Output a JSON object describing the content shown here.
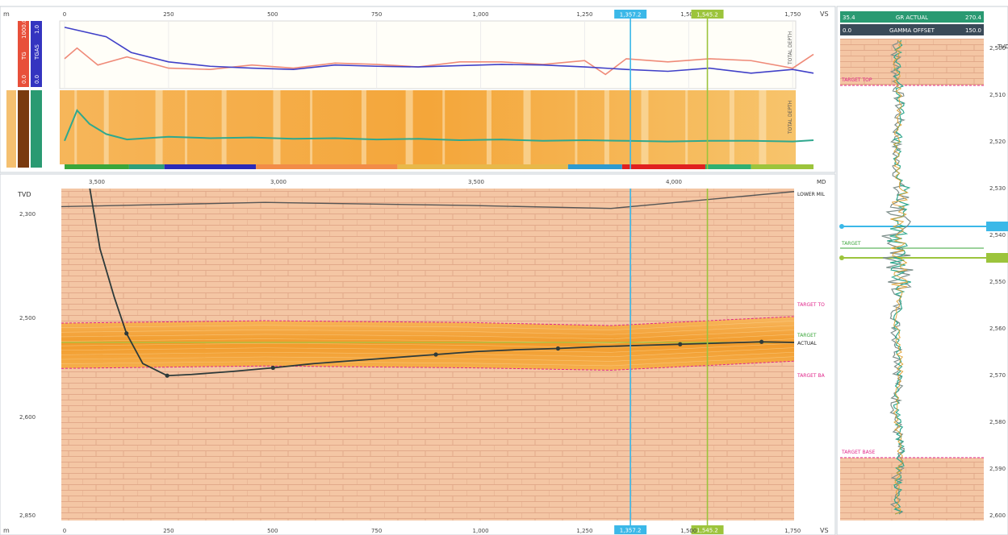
{
  "chart_data": [
    {
      "type": "line",
      "panel": "top-logs",
      "x_axis": {
        "range": [
          0,
          1800
        ],
        "ticks": [
          "0",
          "250",
          "500",
          "750",
          "1,000",
          "1,250",
          "1,500",
          "1,750"
        ],
        "end_label": "VS",
        "unit_label": "m"
      },
      "tracks": [
        {
          "id": "track-1",
          "header_labels": [
            "0.0",
            "TG",
            "1000.0"
          ],
          "side_label": "TOTAL DEPTH"
        },
        {
          "id": "track-2",
          "header_labels": [
            "0.0",
            "TGAS",
            "1.0"
          ],
          "side_label": "TOTAL DEPTH"
        }
      ],
      "series": [
        {
          "color": "#ef8a78",
          "x": [
            0,
            30,
            80,
            150,
            250,
            350,
            450,
            550,
            650,
            750,
            850,
            950,
            1050,
            1150,
            1250,
            1300,
            1350,
            1450,
            1550,
            1650,
            1750,
            1800
          ],
          "y": [
            0.45,
            0.62,
            0.35,
            0.48,
            0.3,
            0.28,
            0.35,
            0.3,
            0.38,
            0.36,
            0.32,
            0.4,
            0.4,
            0.36,
            0.42,
            0.2,
            0.45,
            0.4,
            0.45,
            0.42,
            0.3,
            0.52
          ]
        },
        {
          "color": "#4040c8",
          "x": [
            0,
            100,
            160,
            250,
            350,
            450,
            550,
            650,
            750,
            850,
            950,
            1050,
            1150,
            1250,
            1350,
            1450,
            1550,
            1650,
            1750,
            1800
          ],
          "y": [
            0.95,
            0.8,
            0.55,
            0.4,
            0.33,
            0.3,
            0.28,
            0.35,
            0.33,
            0.32,
            0.34,
            0.36,
            0.35,
            0.32,
            0.28,
            0.25,
            0.3,
            0.22,
            0.28,
            0.22
          ]
        },
        {
          "color": "#2fa88e",
          "x": [
            0,
            30,
            60,
            100,
            150,
            250,
            350,
            450,
            550,
            650,
            750,
            850,
            950,
            1050,
            1150,
            1250,
            1350,
            1450,
            1550,
            1650,
            1750,
            1800
          ],
          "y": [
            0.3,
            0.75,
            0.55,
            0.4,
            0.32,
            0.36,
            0.34,
            0.35,
            0.33,
            0.34,
            0.32,
            0.33,
            0.31,
            0.32,
            0.3,
            0.31,
            0.3,
            0.29,
            0.3,
            0.3,
            0.29,
            0.31
          ]
        }
      ],
      "cursors": [
        {
          "x": 1360,
          "label": "1,357.2",
          "color": "#3bb8e8"
        },
        {
          "x": 1545,
          "label": "1,545.2",
          "color": "#9cc43c"
        }
      ]
    },
    {
      "type": "line",
      "panel": "cross-section",
      "x_axis": {
        "range": [
          0,
          1800
        ],
        "ticks": [
          "0",
          "250",
          "500",
          "750",
          "1,000",
          "1,250",
          "1,500",
          "1,750"
        ],
        "end_label": "VS",
        "unit_label": "m"
      },
      "top_ticks": [
        "3,500",
        "3,000",
        "3,500",
        "4,000"
      ],
      "top_end_label": "MD",
      "y_axis": {
        "label": "TVD",
        "range": [
          2300,
          2850
        ],
        "ticks": [
          "2,300",
          "2,500",
          "2,600",
          "2,850"
        ]
      },
      "layers": [
        {
          "name": "LOWER MIL",
          "label_color": "#222222"
        },
        {
          "name": "TARGET TO",
          "label_color": "#e0258a"
        },
        {
          "name": "TARGET",
          "label_color": "#3aa63a"
        },
        {
          "name": "ACTUAL",
          "label_color": "#222222"
        },
        {
          "name": "TARGET BA",
          "label_color": "#e0258a"
        }
      ],
      "zone_tracks": [
        {
          "name": "",
          "color": "#3aa63a",
          "from": 0,
          "to": 155
        },
        {
          "name": "",
          "color": "#2e9f78",
          "from": 155,
          "to": 240
        },
        {
          "name": "",
          "color": "#2a2ab8",
          "from": 240,
          "to": 460
        },
        {
          "name": "",
          "color": "#f28c48",
          "from": 460,
          "to": 800
        },
        {
          "name": "",
          "color": "#e8b84a",
          "from": 800,
          "to": 1210
        },
        {
          "name": "",
          "color": "#2d9ad0",
          "from": 1210,
          "to": 1340
        },
        {
          "name": "",
          "color": "#e02020",
          "from": 1340,
          "to": 1540
        },
        {
          "name": "",
          "color": "#2fb070",
          "from": 1540,
          "to": 1650
        },
        {
          "name": "",
          "color": "#9cc43c",
          "from": 1650,
          "to": 1800
        }
      ],
      "well_path": {
        "x": [
          70,
          95,
          130,
          160,
          200,
          260,
          320,
          420,
          520,
          620,
          720,
          820,
          920,
          1020,
          1120,
          1220,
          1320,
          1420,
          1520,
          1620,
          1720,
          1800
        ],
        "y": [
          2300,
          2400,
          2480,
          2540,
          2590,
          2610,
          2608,
          2603,
          2597,
          2590,
          2585,
          2580,
          2575,
          2570,
          2567,
          2565,
          2562,
          2560,
          2558,
          2556,
          2554,
          2555
        ]
      },
      "target_top": {
        "x": [
          0,
          500,
          1000,
          1350,
          1800
        ],
        "y": [
          2523,
          2519,
          2522,
          2527,
          2512
        ]
      },
      "target_base": {
        "x": [
          0,
          500,
          1000,
          1350,
          1800
        ],
        "y": [
          2598,
          2594,
          2597,
          2601,
          2586
        ]
      },
      "target_center": {
        "x": [
          0,
          1800
        ],
        "y": [
          2555,
          2555
        ]
      },
      "lower_mil": {
        "x": [
          0,
          500,
          1000,
          1350,
          1800
        ],
        "y": [
          2330,
          2323,
          2328,
          2333,
          2305
        ]
      }
    },
    {
      "type": "line",
      "panel": "offset-log",
      "header": [
        {
          "left": "35.4",
          "title": "GR ACTUAL",
          "right": "270.4",
          "bg": "#2a9a72"
        },
        {
          "left": "0.0",
          "title": "GAMMA OFFSET",
          "right": "150.0",
          "bg": "#3a4a58"
        }
      ],
      "y_axis": {
        "label": "TVD",
        "ticks": [
          "2,500",
          "2,510",
          "2,520",
          "2,530",
          "2,540",
          "2,550",
          "2,560",
          "2,570",
          "2,580",
          "2,590",
          "2,600"
        ]
      },
      "labels": [
        {
          "text": "TARGET TOP",
          "color": "#e0258a"
        },
        {
          "text": "TARGET",
          "color": "#3aa63a"
        },
        {
          "text": "TARGET BASE",
          "color": "#e0258a"
        }
      ],
      "markers": [
        {
          "label": "",
          "color": "#3bb8e8"
        },
        {
          "label": "",
          "color": "#9cc43c"
        }
      ]
    }
  ]
}
